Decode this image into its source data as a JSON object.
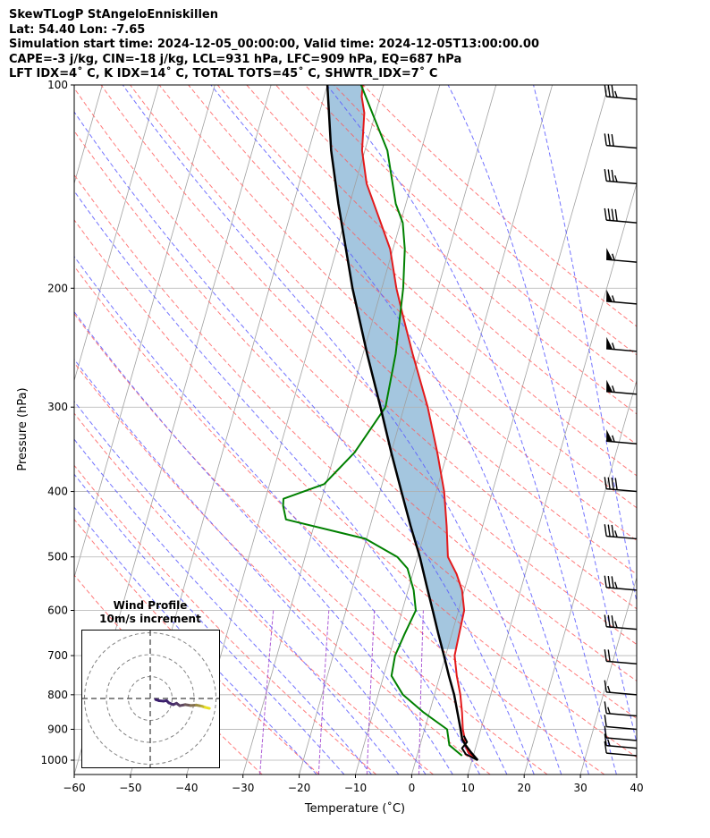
{
  "header": {
    "line1": "SkewTLogP StAngeloEnniskillen",
    "line2": "Lat: 54.40   Lon: -7.65",
    "line3": "Simulation start time: 2024-12-05_00:00:00, Valid time: 2024-12-05T13:00:00.00",
    "line4": "CAPE=-3 j/kg, CIN=-18 j/kg, LCL=931 hPa, LFC=909 hPa, EQ=687 hPa",
    "line5": "LFT IDX=4˚ C, K IDX=14˚ C, TOTAL TOTS=45˚ C, SHWTR_IDX=7˚ C"
  },
  "colors": {
    "temperature": "#e31a1c",
    "dewpoint": "#008000",
    "parcel": "#000000",
    "cape_fill": "#a4c6df",
    "dry_adiabat": "#ff5a5a",
    "moist_adiabat": "#5a5aff",
    "mixing_ratio": "#9933cc",
    "isotherm": "#a0a0a0",
    "hodo_start": "#3b1f6e",
    "hodo_end": "#e8e024"
  },
  "chart_data": {
    "type": "line",
    "title": "",
    "xlabel": "Temperature (˚C)",
    "ylabel": "Pressure (hPa)",
    "xlim": [
      -60,
      40
    ],
    "ylim_hpa": [
      1050,
      100
    ],
    "y_scale": "log",
    "x_ticks": [
      "−60",
      "−50",
      "−40",
      "−30",
      "−20",
      "−10",
      "0",
      "10",
      "20",
      "30",
      "40"
    ],
    "y_ticks": [
      "100",
      "200",
      "300",
      "400",
      "500",
      "600",
      "700",
      "800",
      "900",
      "1000"
    ],
    "grid": true,
    "series": [
      {
        "key": "temperature",
        "data": [
          [
            1000,
            11
          ],
          [
            975,
            9
          ],
          [
            950,
            8
          ],
          [
            925,
            7.5
          ],
          [
            900,
            6.8
          ],
          [
            850,
            5.8
          ],
          [
            800,
            4.6
          ],
          [
            750,
            3.0
          ],
          [
            700,
            1.6
          ],
          [
            650,
            1.3
          ],
          [
            600,
            1.0
          ],
          [
            560,
            -0.4
          ],
          [
            530,
            -2.2
          ],
          [
            500,
            -4.6
          ],
          [
            450,
            -6.4
          ],
          [
            400,
            -8.6
          ],
          [
            350,
            -11.8
          ],
          [
            300,
            -15.8
          ],
          [
            250,
            -21.2
          ],
          [
            220,
            -24.8
          ],
          [
            200,
            -27.4
          ],
          [
            175,
            -30.5
          ],
          [
            160,
            -33.5
          ],
          [
            140,
            -38.0
          ],
          [
            125,
            -40.5
          ],
          [
            110,
            -42.0
          ],
          [
            104,
            -43.3
          ],
          [
            100,
            -43.7
          ]
        ]
      },
      {
        "key": "dewpoint",
        "data": [
          [
            985,
            8.0
          ],
          [
            950,
            5.2
          ],
          [
            900,
            4.0
          ],
          [
            850,
            -1.0
          ],
          [
            800,
            -5.6
          ],
          [
            750,
            -8.6
          ],
          [
            700,
            -9.0
          ],
          [
            650,
            -8.4
          ],
          [
            600,
            -7.6
          ],
          [
            560,
            -9.0
          ],
          [
            520,
            -11.2
          ],
          [
            500,
            -13.6
          ],
          [
            470,
            -20.2
          ],
          [
            440,
            -35.3
          ],
          [
            420,
            -36.5
          ],
          [
            410,
            -36.8
          ],
          [
            390,
            -30.3
          ],
          [
            350,
            -26.5
          ],
          [
            300,
            -23.3
          ],
          [
            250,
            -24.2
          ],
          [
            200,
            -26.2
          ],
          [
            175,
            -27.9
          ],
          [
            160,
            -29.6
          ],
          [
            150,
            -31.8
          ],
          [
            125,
            -36.0
          ],
          [
            110,
            -40.6
          ],
          [
            100,
            -44.0
          ]
        ]
      },
      {
        "key": "parcel",
        "data": [
          [
            1000,
            11
          ],
          [
            975,
            9.5
          ],
          [
            950,
            8.1
          ],
          [
            931,
            7.2
          ],
          [
            900,
            6.4
          ],
          [
            850,
            5.0
          ],
          [
            800,
            3.5
          ],
          [
            750,
            1.6
          ],
          [
            700,
            -0.3
          ],
          [
            650,
            -2.4
          ],
          [
            600,
            -4.6
          ],
          [
            550,
            -7.0
          ],
          [
            500,
            -9.6
          ],
          [
            450,
            -12.8
          ],
          [
            400,
            -16.2
          ],
          [
            350,
            -20.0
          ],
          [
            300,
            -24.2
          ],
          [
            250,
            -29.3
          ],
          [
            200,
            -35.2
          ],
          [
            150,
            -42.0
          ],
          [
            125,
            -46.0
          ],
          [
            100,
            -50.0
          ]
        ]
      },
      {
        "key": "parcel_lower",
        "data": [
          [
            1000,
            11
          ],
          [
            980,
            8.6
          ],
          [
            960,
            7.6
          ],
          [
            940,
            8.2
          ],
          [
            920,
            7.3
          ]
        ]
      }
    ],
    "wind_barbs": [
      {
        "p": 105,
        "kt": 35
      },
      {
        "p": 124,
        "kt": 30
      },
      {
        "p": 140,
        "kt": 35
      },
      {
        "p": 160,
        "kt": 40
      },
      {
        "p": 183,
        "kt": 55
      },
      {
        "p": 211,
        "kt": 55
      },
      {
        "p": 248,
        "kt": 55
      },
      {
        "p": 287,
        "kt": 55
      },
      {
        "p": 340,
        "kt": 55
      },
      {
        "p": 400,
        "kt": 40
      },
      {
        "p": 470,
        "kt": 35
      },
      {
        "p": 560,
        "kt": 35
      },
      {
        "p": 640,
        "kt": 35
      },
      {
        "p": 720,
        "kt": 20
      },
      {
        "p": 800,
        "kt": 15
      },
      {
        "p": 860,
        "kt": 15
      },
      {
        "p": 900,
        "kt": 10
      },
      {
        "p": 935,
        "kt": 10
      },
      {
        "p": 960,
        "kt": 15
      },
      {
        "p": 985,
        "kt": 10
      }
    ],
    "hodograph": {
      "title": "Wind Profile",
      "subtitle": "10m/s increment",
      "rings_ms": [
        10,
        20,
        30
      ],
      "trace_uv": [
        [
          27.0,
          -4.5
        ],
        [
          25.0,
          -4.0
        ],
        [
          23.5,
          -3.5
        ],
        [
          21.0,
          -3.0
        ],
        [
          18.5,
          -3.2
        ],
        [
          16.0,
          -2.8
        ],
        [
          13.5,
          -3.3
        ],
        [
          12.0,
          -2.2
        ],
        [
          10.5,
          -2.8
        ],
        [
          8.5,
          -2.0
        ],
        [
          7.5,
          -1.0
        ],
        [
          6.0,
          -1.2
        ],
        [
          4.0,
          -1.0
        ],
        [
          2.5,
          -0.5
        ]
      ]
    }
  }
}
